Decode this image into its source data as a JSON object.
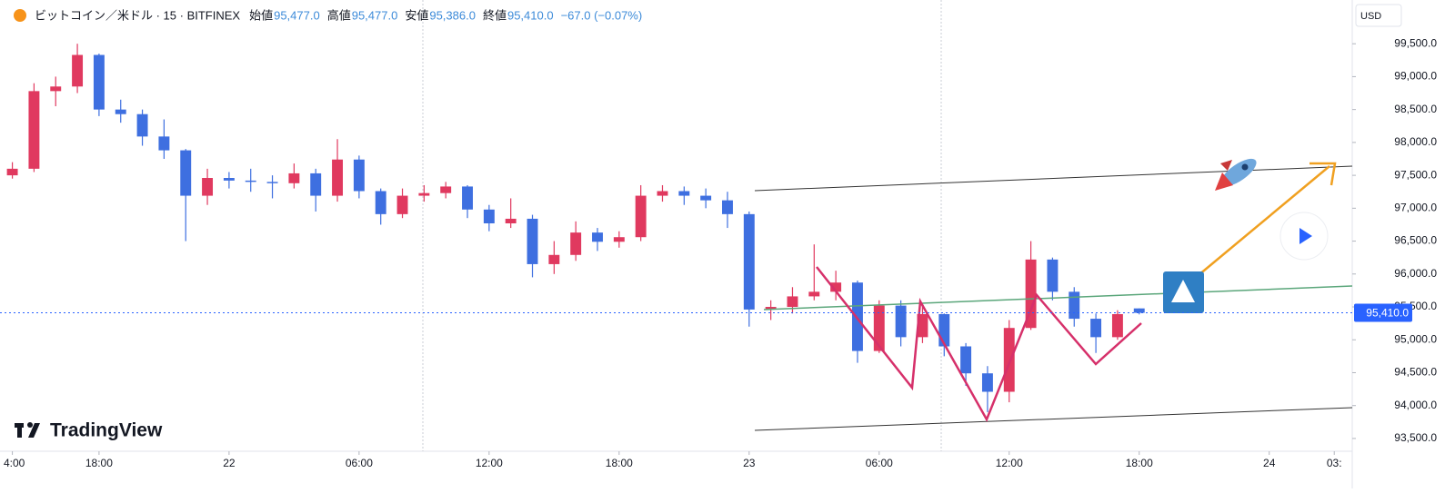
{
  "chart_data": {
    "type": "candlestick",
    "title": "ビットコイン／米ドル · 15 · BITFINEX",
    "ohlc_legend": [
      {
        "label": "始値",
        "value": "95,477.0"
      },
      {
        "label": "高値",
        "value": "95,477.0"
      },
      {
        "label": "安値",
        "value": "95,386.0"
      },
      {
        "label": "終値",
        "value": "95,410.0"
      }
    ],
    "change": "−67.0 (−0.07%)",
    "currency": "USD",
    "brand": "TradingView",
    "up_color": "#e0395f",
    "down_color": "#3e6fe0",
    "x": [
      14,
      15,
      16,
      17,
      18,
      19,
      20,
      21,
      22,
      23,
      24,
      25,
      26,
      27,
      28,
      29,
      30,
      31,
      32,
      33,
      34,
      35,
      36,
      37,
      38,
      39,
      40,
      41,
      42,
      43,
      44,
      45,
      46,
      47,
      48,
      49,
      50,
      51,
      52,
      53,
      54,
      55,
      56,
      57,
      58,
      59,
      60,
      61,
      62,
      63,
      64,
      65,
      66
    ],
    "open": [
      97500,
      97600,
      98780,
      98850,
      99330,
      98500,
      98430,
      98090,
      97880,
      97190,
      97460,
      97420,
      97400,
      97380,
      97530,
      97190,
      97740,
      97260,
      96910,
      97190,
      97230,
      97330,
      96980,
      96770,
      96840,
      96150,
      96290,
      96630,
      96490,
      96560,
      97190,
      97260,
      97190,
      97120,
      96910,
      95460,
      95500,
      95660,
      95730,
      95870,
      94830,
      95520,
      95040,
      95390,
      94900,
      94490,
      94210,
      95180,
      96220,
      95730,
      95320,
      95040,
      95477
    ],
    "high": [
      97700,
      98900,
      99000,
      99500,
      99350,
      98650,
      98500,
      98350,
      97900,
      97600,
      97550,
      97600,
      97500,
      97680,
      97600,
      98050,
      97800,
      97300,
      97300,
      97350,
      97400,
      97350,
      97050,
      97150,
      96900,
      96500,
      96800,
      96700,
      96650,
      97350,
      97350,
      97330,
      97300,
      97250,
      96950,
      95600,
      95800,
      96450,
      96050,
      95900,
      95600,
      95600,
      95550,
      95400,
      94950,
      94600,
      95300,
      96500,
      96250,
      95800,
      95400,
      95450,
      95477
    ],
    "low": [
      97450,
      97550,
      98550,
      98750,
      98400,
      98300,
      97950,
      97750,
      96500,
      97050,
      97300,
      97250,
      97150,
      97300,
      96950,
      97100,
      97150,
      96750,
      96850,
      97100,
      97150,
      96850,
      96650,
      96700,
      95950,
      96000,
      96200,
      96350,
      96400,
      96500,
      97100,
      97050,
      97000,
      96700,
      95200,
      95300,
      95400,
      95600,
      95600,
      94650,
      94800,
      94900,
      94950,
      94750,
      94300,
      93900,
      94050,
      95150,
      95600,
      95200,
      94800,
      95000,
      95386
    ],
    "close": [
      97600,
      98780,
      98850,
      99330,
      98500,
      98430,
      98090,
      97880,
      97190,
      97460,
      97420,
      97400,
      97380,
      97530,
      97190,
      97740,
      97260,
      96910,
      97190,
      97230,
      97330,
      96980,
      96770,
      96840,
      96150,
      96290,
      96630,
      96490,
      96560,
      97190,
      97260,
      97190,
      97120,
      96910,
      95460,
      95500,
      95660,
      95730,
      95870,
      94830,
      95520,
      95040,
      95390,
      94900,
      94490,
      94210,
      95180,
      96220,
      95730,
      95320,
      95040,
      95390,
      95410
    ],
    "xlim": [
      13.43,
      75.83
    ],
    "ylim": [
      93306,
      100165
    ],
    "xticks": [
      {
        "value": 14,
        "label": "4:00"
      },
      {
        "value": 18,
        "label": "18:00"
      },
      {
        "value": 24,
        "label": "22"
      },
      {
        "value": 30,
        "label": "06:00"
      },
      {
        "value": 36,
        "label": "12:00"
      },
      {
        "value": 42,
        "label": "18:00"
      },
      {
        "value": 48,
        "label": "23"
      },
      {
        "value": 54,
        "label": "06:00"
      },
      {
        "value": 60,
        "label": "12:00"
      },
      {
        "value": 66,
        "label": "18:00"
      },
      {
        "value": 72,
        "label": "24"
      },
      {
        "value": 75,
        "label": "03:"
      }
    ],
    "yticks": [
      {
        "value": 93500,
        "label": "93,500.0"
      },
      {
        "value": 94000,
        "label": "94,000.0"
      },
      {
        "value": 94500,
        "label": "94,500.0"
      },
      {
        "value": 95000,
        "label": "95,000.0"
      },
      {
        "value": 95500,
        "label": "95,500.0"
      },
      {
        "value": 96000,
        "label": "96,000.0"
      },
      {
        "value": 96500,
        "label": "96,500.0"
      },
      {
        "value": 97000,
        "label": "97,000.0"
      },
      {
        "value": 97500,
        "label": "97,500.0"
      },
      {
        "value": 98000,
        "label": "98,000.0"
      },
      {
        "value": 98500,
        "label": "98,500.0"
      },
      {
        "value": 99000,
        "label": "99,000.0"
      },
      {
        "value": 99500,
        "label": "99,500.0"
      }
    ],
    "last_price": {
      "value": 95410,
      "label": "95,410.0"
    }
  }
}
